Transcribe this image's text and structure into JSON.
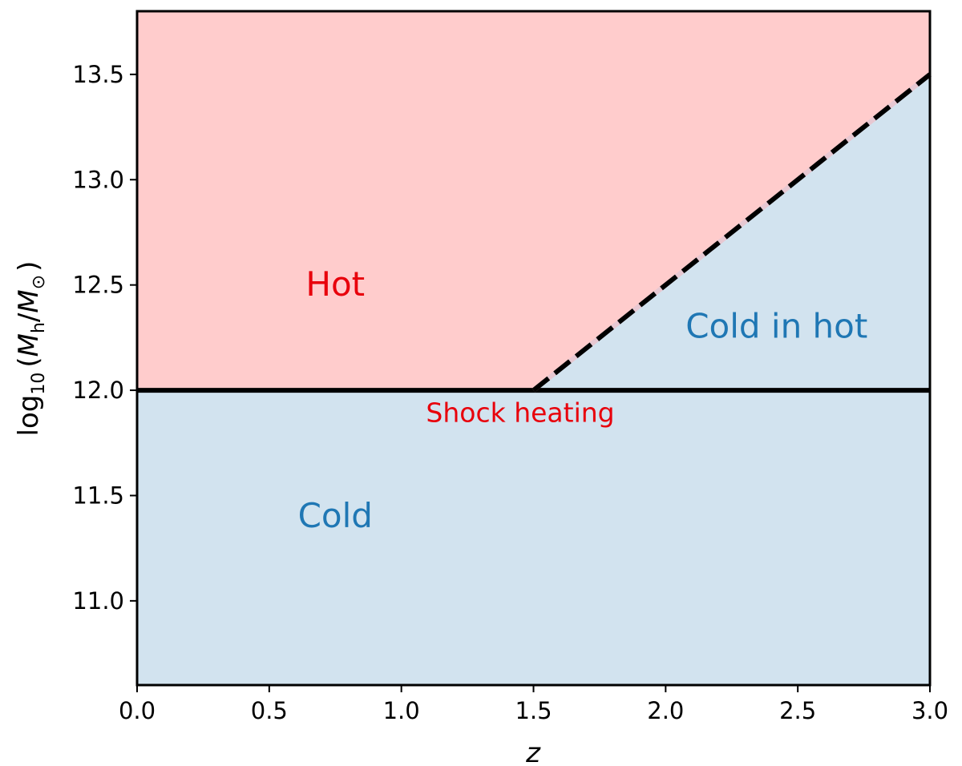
{
  "chart_data": {
    "type": "area",
    "xlabel": "z",
    "ylabel": {
      "prefix": "log",
      "prefix_sub": "10",
      "open": "(",
      "m1": "M",
      "m1_sub": "h",
      "slash": "/",
      "m2": "M",
      "m2_sub": "⊙",
      "close": ")"
    },
    "xlim": [
      0.0,
      3.0
    ],
    "ylim": [
      10.6,
      13.8
    ],
    "x_ticks": [
      0.0,
      0.5,
      1.0,
      1.5,
      2.0,
      2.5,
      3.0
    ],
    "x_tick_labels": [
      "0.0",
      "0.5",
      "1.0",
      "1.5",
      "2.0",
      "2.5",
      "3.0"
    ],
    "y_ticks": [
      11.0,
      11.5,
      12.0,
      12.5,
      13.0,
      13.5
    ],
    "y_tick_labels": [
      "11.0",
      "11.5",
      "12.0",
      "12.5",
      "13.0",
      "13.5"
    ],
    "grid": false,
    "series": [
      {
        "style": "solid",
        "x": [
          0.0,
          3.0
        ],
        "y": [
          12.0,
          12.0
        ]
      },
      {
        "style": "dashed",
        "x": [
          1.5,
          3.0
        ],
        "y": [
          12.0,
          13.5
        ]
      }
    ],
    "regions": [
      {
        "label": "Hot",
        "color": "#ffcccc",
        "text_color": "#e8000b",
        "x": 0.75,
        "y": 12.45
      },
      {
        "label": "Cold",
        "color": "#d2e3ef",
        "text_color": "#1f77b4",
        "x": 0.75,
        "y": 11.35
      },
      {
        "label": "Cold in hot",
        "color": "#d2e3ef",
        "text_color": "#1f77b4",
        "x": 2.42,
        "y": 12.25
      }
    ],
    "annotations": [
      {
        "text": "Shock heating",
        "color": "#e8000b",
        "x": 1.45,
        "y": 11.85
      }
    ]
  }
}
